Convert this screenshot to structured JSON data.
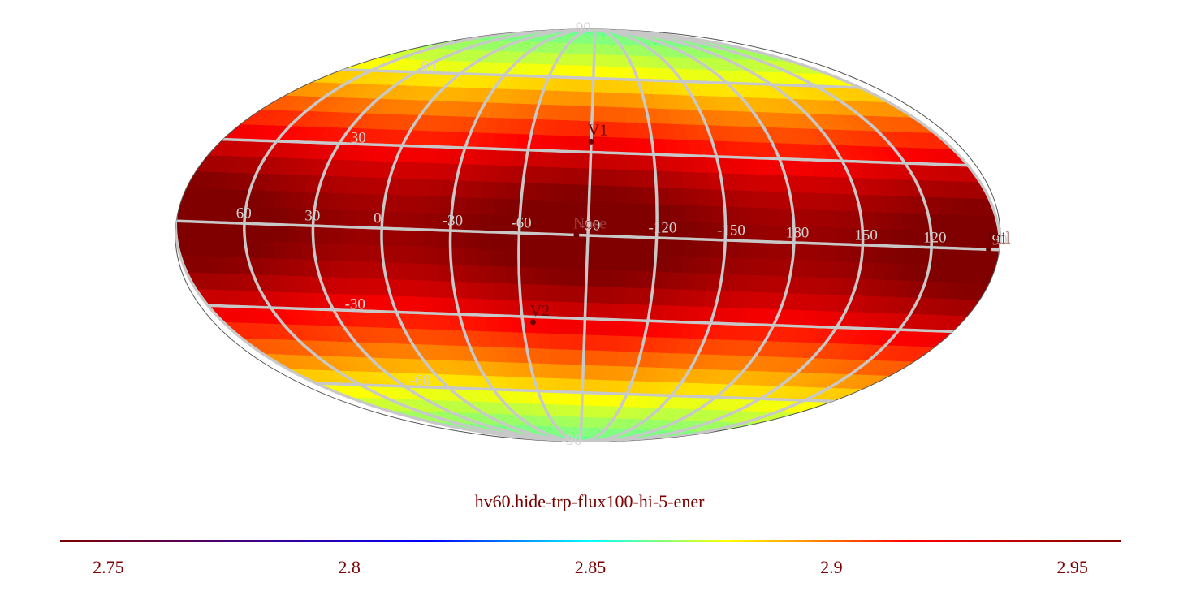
{
  "title": "hv60.hide-trp-flux100-hi-5-ener",
  "projection": "mollweide",
  "colormap": "jet",
  "colorbar": {
    "min": 2.74,
    "max": 2.96,
    "ticks": [
      "2.75",
      "2.8",
      "2.85",
      "2.9",
      "2.95"
    ],
    "tick_values": [
      2.75,
      2.8,
      2.85,
      2.9,
      2.95
    ]
  },
  "graticule": {
    "meridian_labels": [
      "60",
      "30",
      "0",
      "-30",
      "-60",
      "-90",
      "-120",
      "-150",
      "180",
      "150",
      "120",
      "90"
    ],
    "parallel_labels": [
      "90",
      "60",
      "30",
      "-30",
      "-60",
      "-90"
    ],
    "color": "#c8c8c8"
  },
  "markers": [
    {
      "name": "V1",
      "label": "V1",
      "lon": -95,
      "lat": 34
    },
    {
      "name": "Nose",
      "label": "Nose",
      "lon": -90,
      "lat": 0
    },
    {
      "name": "Tail",
      "label": "Tail",
      "lon": 90,
      "lat": 0
    },
    {
      "name": "V2",
      "label": "V2",
      "lon": -70,
      "lat": -32
    }
  ],
  "data_field": {
    "description": "latitudinal banding: max near equator, min at poles",
    "lon_step_deg": 6,
    "lat_step_deg": 6
  }
}
